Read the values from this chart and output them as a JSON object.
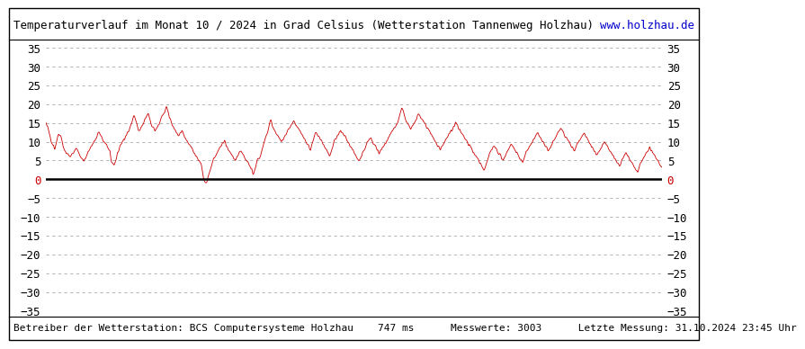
{
  "title": "Temperaturverlauf im Monat 10 / 2024 in Grad Celsius (Wetterstation Tannenweg Holzhau)",
  "url_text": "www.holzhau.de",
  "footer_text": "Betreiber der Wetterstation: BCS Computersysteme Holzhau    747 ms      Messwerte: 3003      Letzte Messung: 31.10.2024 23:45 Uhr",
  "ylim": [
    -35,
    35
  ],
  "yticks": [
    -35,
    -30,
    -25,
    -20,
    -15,
    -10,
    -5,
    0,
    5,
    10,
    15,
    20,
    25,
    30,
    35
  ],
  "line_color": "#cc0000",
  "zero_line_color": "#000000",
  "zero_label_color": "#cc0000",
  "grid_color": "#aaaaaa",
  "background_color": "#ffffff",
  "title_fontsize": 9,
  "footer_fontsize": 8,
  "tick_fontsize": 9,
  "num_points": 3003,
  "temp_data": [
    15.0,
    14.5,
    13.8,
    12.5,
    11.2,
    10.0,
    9.5,
    8.8,
    8.2,
    9.0,
    10.5,
    11.8,
    12.0,
    11.5,
    10.8,
    9.5,
    8.0,
    7.5,
    7.0,
    6.8,
    6.5,
    6.2,
    6.0,
    6.5,
    7.0,
    7.5,
    8.0,
    8.5,
    7.8,
    7.0,
    6.5,
    6.0,
    5.5,
    5.2,
    5.0,
    5.5,
    6.0,
    7.0,
    7.5,
    8.0,
    8.5,
    9.0,
    9.5,
    10.0,
    10.5,
    11.0,
    12.0,
    12.5,
    12.0,
    11.5,
    11.0,
    10.5,
    10.0,
    9.5,
    9.0,
    8.5,
    8.0,
    7.5,
    5.0,
    4.5,
    4.0,
    4.2,
    5.0,
    6.0,
    7.0,
    8.0,
    9.0,
    9.5,
    10.0,
    10.5,
    11.0,
    11.5,
    12.0,
    12.5,
    13.0,
    14.0,
    15.0,
    16.0,
    17.0,
    16.5,
    15.5,
    14.5,
    13.5,
    13.0,
    13.5,
    14.0,
    14.5,
    15.0,
    16.0,
    16.5,
    17.0,
    17.5,
    16.5,
    15.5,
    14.5,
    14.0,
    13.5,
    13.0,
    13.5,
    14.0,
    14.5,
    15.0,
    16.0,
    16.5,
    17.0,
    17.5,
    18.0,
    19.0,
    18.5,
    17.5,
    16.5,
    15.5,
    14.5,
    14.0,
    13.5,
    13.0,
    12.5,
    12.0,
    11.5,
    12.0,
    12.5,
    13.0,
    12.5,
    11.5,
    11.0,
    10.5,
    10.0,
    9.5,
    9.0,
    8.5,
    8.0,
    7.5,
    7.0,
    6.5,
    6.0,
    5.5,
    5.0,
    4.5,
    4.0,
    2.0,
    0.5,
    -0.5,
    -1.0,
    -0.5,
    0.5,
    1.5,
    2.5,
    3.5,
    4.5,
    5.5,
    6.0,
    6.5,
    7.0,
    7.5,
    8.0,
    8.5,
    9.0,
    9.5,
    10.0,
    10.5,
    9.0,
    8.5,
    8.0,
    7.5,
    7.0,
    6.5,
    6.0,
    5.5,
    5.0,
    5.5,
    6.0,
    6.5,
    7.0,
    7.5,
    7.0,
    6.5,
    6.0,
    5.5,
    5.0,
    4.5,
    4.0,
    3.5,
    3.0,
    2.5,
    1.5,
    2.0,
    3.0,
    4.0,
    5.0,
    5.5,
    6.0,
    7.0,
    8.0,
    9.0,
    10.0,
    11.0,
    12.0,
    13.0,
    14.0,
    15.0,
    15.5,
    14.5,
    13.5,
    13.0,
    12.5,
    12.0,
    11.5,
    11.0,
    10.5,
    10.0,
    10.5,
    11.0,
    11.5,
    12.0,
    12.5,
    13.0,
    13.5,
    14.0,
    14.5,
    15.0,
    15.5,
    15.0,
    14.5,
    14.0,
    13.5,
    13.0,
    12.5,
    12.0,
    11.5,
    11.0,
    10.5,
    10.0,
    9.5,
    9.0,
    8.5,
    8.0,
    9.0,
    10.0,
    11.0,
    12.0,
    12.5,
    12.0,
    11.5,
    11.0,
    10.5,
    10.0,
    9.5,
    9.0,
    8.5,
    8.0,
    7.5,
    7.0,
    6.5,
    7.0,
    8.0,
    9.0,
    10.0,
    10.5,
    11.0,
    11.5,
    12.0,
    12.5,
    13.0,
    12.5,
    12.0,
    11.5,
    11.0,
    10.5,
    10.0,
    9.5,
    9.0,
    8.5,
    8.0,
    7.5,
    7.0,
    6.5,
    6.0,
    5.5,
    5.0,
    5.5,
    6.0,
    7.0,
    7.5,
    8.0,
    9.0,
    9.5,
    10.0,
    10.5,
    11.0,
    10.5,
    10.0,
    9.5,
    9.0,
    8.5,
    8.0,
    7.5,
    7.0,
    7.5,
    8.0,
    8.5,
    9.0,
    9.5,
    10.0,
    10.5,
    11.0,
    11.5,
    12.0,
    12.5,
    13.0,
    13.5,
    14.0,
    14.5,
    15.0,
    16.0,
    17.0,
    18.0,
    19.0,
    18.5,
    17.5,
    16.5,
    15.5,
    15.0,
    14.5,
    14.0,
    13.5,
    14.0,
    14.5,
    15.0,
    15.5,
    16.0,
    17.0,
    17.5,
    17.0,
    16.5,
    16.0,
    15.5,
    15.0,
    14.5,
    14.0,
    13.5,
    13.0,
    12.5,
    12.0,
    11.5,
    11.0,
    10.5,
    10.0,
    9.5,
    9.0,
    8.5,
    8.0,
    8.5,
    9.0,
    9.5,
    10.0,
    10.5,
    11.0,
    11.5,
    12.0,
    12.5,
    13.0,
    13.5,
    14.0,
    14.5,
    15.0,
    14.5,
    14.0,
    13.5,
    13.0,
    12.5,
    12.0,
    11.5,
    11.0,
    10.5,
    10.0,
    9.5,
    9.0,
    8.5,
    8.0,
    7.5,
    7.0,
    6.5,
    6.0,
    5.5,
    5.0,
    4.5,
    4.0,
    3.5,
    3.0,
    2.5,
    3.0,
    4.0,
    5.0,
    6.0,
    7.0,
    7.5,
    8.0,
    8.5,
    9.0,
    8.5,
    8.0,
    7.5,
    7.0,
    6.5,
    6.0,
    5.5,
    5.0,
    5.5,
    6.0,
    7.0,
    7.5,
    8.0,
    9.0,
    9.5,
    9.0,
    8.5,
    8.0,
    7.5,
    7.0,
    6.5,
    6.0,
    5.5,
    5.0,
    4.5,
    5.0,
    6.0,
    7.0,
    7.5,
    8.0,
    8.5,
    9.0,
    9.5,
    10.0,
    10.5,
    11.0,
    11.5,
    12.0,
    12.5,
    11.5,
    11.0,
    10.5,
    10.0,
    9.5,
    9.0,
    8.5,
    8.0,
    7.5,
    8.0,
    8.5,
    9.0,
    10.0,
    10.5,
    11.0,
    11.5,
    12.0,
    12.5,
    13.0,
    13.5,
    13.0,
    12.5,
    12.0,
    11.5,
    11.0,
    10.5,
    10.0,
    9.5,
    9.0,
    8.5,
    8.0,
    7.5,
    8.0,
    9.0,
    9.5,
    10.0,
    10.5,
    11.0,
    11.5,
    12.0,
    12.5,
    11.5,
    11.0,
    10.5,
    10.0,
    9.5,
    9.0,
    8.5,
    8.0,
    7.5,
    7.0,
    6.5,
    7.0,
    7.5,
    8.0,
    8.5,
    9.0,
    9.5,
    10.0,
    9.5,
    9.0,
    8.5,
    8.0,
    7.5,
    7.0,
    6.5,
    6.0,
    5.5,
    5.0,
    4.5,
    4.0,
    3.5,
    4.0,
    5.0,
    5.5,
    6.0,
    6.5,
    7.0,
    6.5,
    6.0,
    5.5,
    5.0,
    4.5,
    4.0,
    3.5,
    3.0,
    2.5,
    2.0,
    2.5,
    3.5,
    4.5,
    5.0,
    5.5,
    6.0,
    6.5,
    7.0,
    7.5,
    8.0,
    8.5,
    8.0,
    7.5,
    7.0,
    6.5,
    6.0,
    5.5,
    5.0,
    4.5,
    4.0,
    3.5,
    3.0
  ]
}
